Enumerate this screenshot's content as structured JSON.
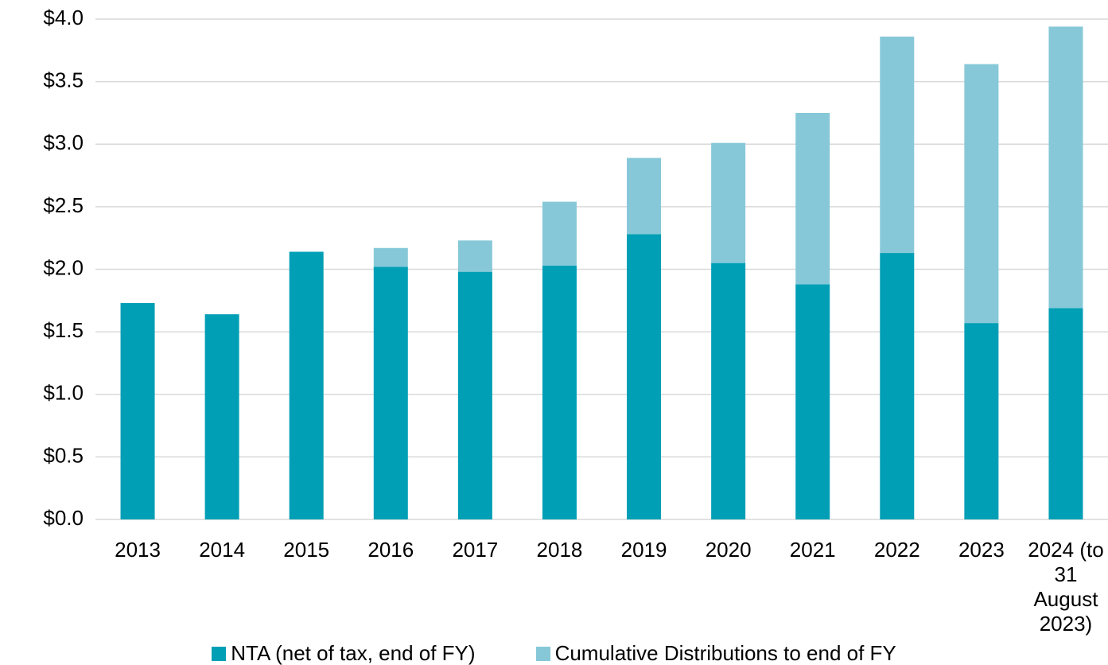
{
  "chart_data": {
    "type": "stacked_bar",
    "categories": [
      "2013",
      "2014",
      "2015",
      "2016",
      "2017",
      "2018",
      "2019",
      "2020",
      "2021",
      "2022",
      "2023",
      "2024 (to 31 August 2023)"
    ],
    "series": [
      {
        "name": "NTA (net of tax, end of FY)",
        "color": "#009fb5",
        "values": [
          1.73,
          1.64,
          2.14,
          2.02,
          1.98,
          2.03,
          2.28,
          2.05,
          1.88,
          2.13,
          1.57,
          1.69
        ]
      },
      {
        "name": "Cumulative Distributions to end of FY",
        "color": "#86c8d8",
        "values": [
          0,
          0,
          0,
          0.15,
          0.25,
          0.51,
          0.61,
          0.96,
          1.37,
          1.73,
          2.07,
          2.25
        ]
      }
    ],
    "ylim": [
      0,
      4
    ],
    "yticks": [
      {
        "value": 0,
        "label": "$0.0"
      },
      {
        "value": 0.5,
        "label": "$0.5"
      },
      {
        "value": 1,
        "label": "$1.0"
      },
      {
        "value": 1.5,
        "label": "$1.5"
      },
      {
        "value": 2,
        "label": "$2.0"
      },
      {
        "value": 2.5,
        "label": "$2.5"
      },
      {
        "value": 3,
        "label": "$3.0"
      },
      {
        "value": 3.5,
        "label": "$3.5"
      },
      {
        "value": 4,
        "label": "$4.0"
      }
    ],
    "grid": true,
    "legend": "bottom"
  }
}
